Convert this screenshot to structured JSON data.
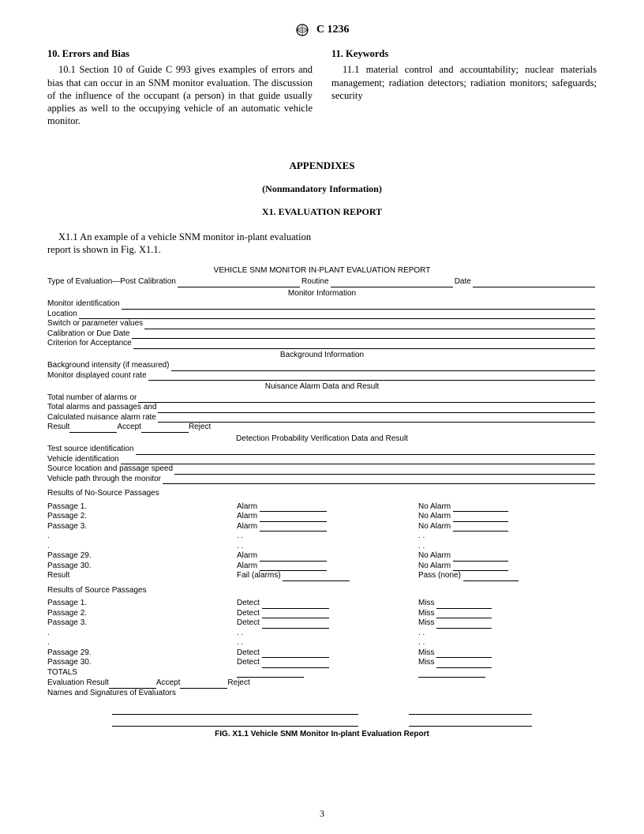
{
  "header": {
    "designation": "C 1236"
  },
  "left": {
    "title": "10.  Errors and Bias",
    "para": "10.1 Section 10 of Guide C 993 gives examples of errors and bias that can occur in an SNM monitor evaluation. The discussion of the influence of the occupant (a person) in that guide usually applies as well to the occupying vehicle of an automatic vehicle monitor."
  },
  "right": {
    "title": "11.  Keywords",
    "para": "11.1 material control and accountability; nuclear materials management; radiation detectors; radiation monitors; safeguards; security"
  },
  "appendix": {
    "title": "APPENDIXES",
    "sub": "(Nonmandatory Information)",
    "sec": "X1.  EVALUATION REPORT",
    "para": "X1.1   An example of a vehicle SNM monitor in-plant evaluation report is shown in Fig. X1.1."
  },
  "form": {
    "title": "VEHICLE SNM MONITOR IN-PLANT EVALUATION REPORT",
    "topLine": {
      "a": "Type of Evaluation—Post Calibration",
      "b": "Routine",
      "c": "Date"
    },
    "monInfoHdr": "Monitor Information",
    "monInfo": [
      "Monitor identification",
      "Location",
      "Switch or parameter values",
      "Calibration or Due Date",
      "Criterion for Acceptance"
    ],
    "bgHdr": "Background Information",
    "bg": [
      "Background intensity (if measured)",
      "Monitor displayed count rate"
    ],
    "nuisHdr": "Nuisance Alarm Data and Result",
    "nuis": [
      "Total number of alarms or",
      "Total alarms and passages and",
      "Calculated nuisance alarm rate"
    ],
    "nuisResult": {
      "label": "Result",
      "accept": "Accept",
      "reject": "Reject"
    },
    "dpHdr": "Detection Probability Verification Data and Result",
    "dp": [
      "Test source identification",
      "Vehicle identification",
      "Source location and passage speed",
      "Vehicle path through the monitor"
    ],
    "noSrcHdr": "Results of No-Source Passages",
    "noSrcRows": [
      {
        "l": "Passage 1.",
        "m": "Alarm",
        "r": "No Alarm"
      },
      {
        "l": "Passage 2.",
        "m": "Alarm",
        "r": "No Alarm"
      },
      {
        "l": "Passage 3.",
        "m": "Alarm",
        "r": "No Alarm"
      },
      {
        "l": ".",
        "m": ". .",
        "r": ". ."
      },
      {
        "l": ".",
        "m": ". .",
        "r": ". ."
      },
      {
        "l": "Passage 29.",
        "m": "Alarm",
        "r": "No Alarm"
      },
      {
        "l": "Passage 30.",
        "m": "Alarm",
        "r": "No Alarm"
      },
      {
        "l": "Result",
        "m": "Fail (alarms)",
        "r": "Pass (none)"
      }
    ],
    "srcHdr": "Results of Source Passages",
    "srcRows": [
      {
        "l": "Passage 1.",
        "m": "Detect",
        "r": "Miss"
      },
      {
        "l": "Passage 2.",
        "m": "Detect",
        "r": "Miss"
      },
      {
        "l": "Passage 3.",
        "m": "Detect",
        "r": "Miss"
      },
      {
        "l": ".",
        "m": ". .",
        "r": ". ."
      },
      {
        "l": ".",
        "m": ". .",
        "r": ". ."
      },
      {
        "l": "Passage 29.",
        "m": "Detect",
        "r": "Miss"
      },
      {
        "l": "Passage 30.",
        "m": "Detect",
        "r": "Miss"
      }
    ],
    "totals": "TOTALS",
    "evalResult": {
      "label": "Evaluation Result",
      "accept": "Accept",
      "reject": "Reject"
    },
    "sig": "Names and Signatures of Evaluators"
  },
  "caption": "FIG. X1.1 Vehicle SNM Monitor In-plant Evaluation Report",
  "pageNum": "3"
}
